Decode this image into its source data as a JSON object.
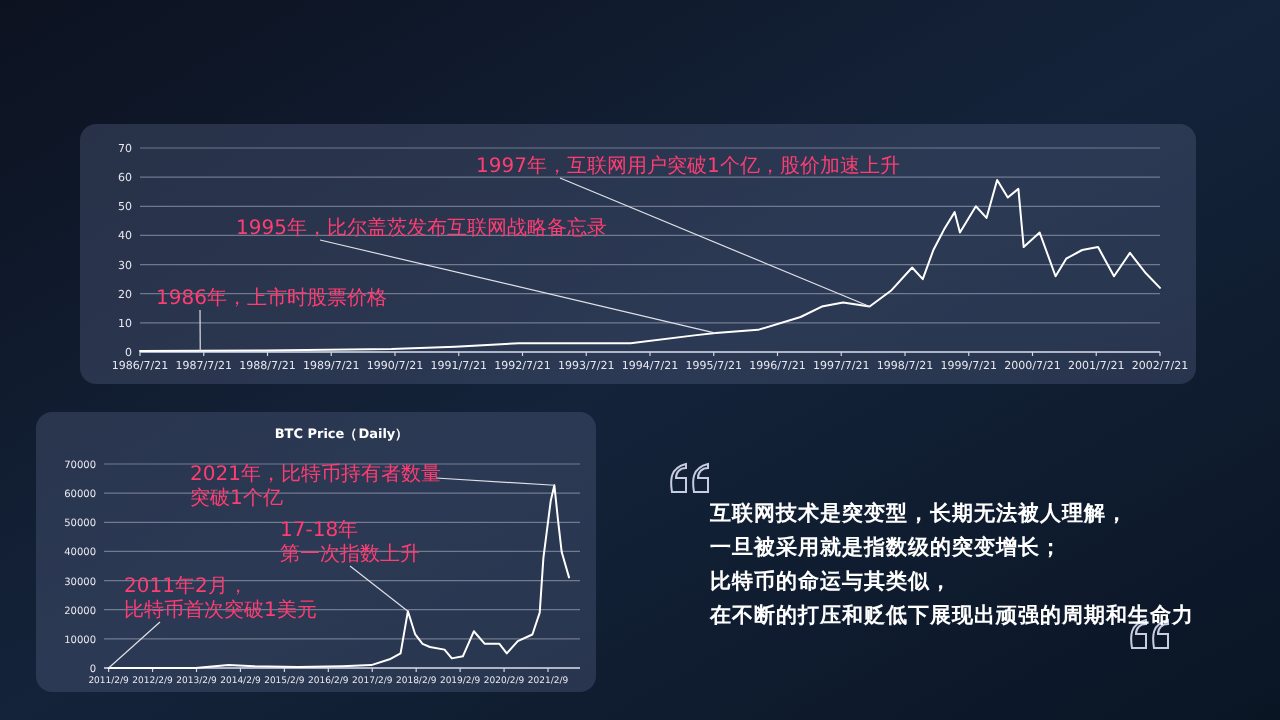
{
  "chart_data": [
    {
      "type": "line",
      "x": [
        "1986-07-21",
        "1987-07",
        "1988-07",
        "1989-07",
        "1990-07",
        "1991-07",
        "1992-07",
        "1993-07",
        "1994-04",
        "1995-04",
        "1995-08",
        "1996-04",
        "1996-12",
        "1997-04",
        "1997-08",
        "1998-01",
        "1998-05",
        "1998-09",
        "1998-11",
        "1999-01",
        "1999-03",
        "1999-05",
        "1999-06",
        "1999-09",
        "1999-11",
        "2000-01",
        "2000-03",
        "2000-05",
        "2000-06",
        "2000-09",
        "2000-12",
        "2001-02",
        "2001-05",
        "2001-08",
        "2001-11",
        "2002-02",
        "2002-05",
        "2002-07-21"
      ],
      "series": [
        {
          "color": "#ffffff",
          "values": [
            0.3,
            0.4,
            0.5,
            0.8,
            1,
            1.8,
            3,
            3,
            3,
            5.7,
            6.5,
            7.6,
            12,
            15.6,
            17,
            15.6,
            21,
            29,
            25,
            35,
            42,
            48,
            41,
            50,
            46,
            59,
            53,
            56,
            36,
            41,
            26,
            32,
            35,
            36,
            26,
            34,
            27,
            22
          ]
        }
      ],
      "xlim": [
        "1986-07-21",
        "2002-07-21"
      ],
      "xticks": [
        {
          "value": "1986-07-21",
          "label": "1986/7/21"
        },
        {
          "value": "1987-07-21",
          "label": "1987/7/21"
        },
        {
          "value": "1988-07-21",
          "label": "1988/7/21"
        },
        {
          "value": "1989-07-21",
          "label": "1989/7/21"
        },
        {
          "value": "1990-07-21",
          "label": "1990/7/21"
        },
        {
          "value": "1991-07-21",
          "label": "1991/7/21"
        },
        {
          "value": "1992-07-21",
          "label": "1992/7/21"
        },
        {
          "value": "1993-07-21",
          "label": "1993/7/21"
        },
        {
          "value": "1994-07-21",
          "label": "1994/7/21"
        },
        {
          "value": "1995-07-21",
          "label": "1995/7/21"
        },
        {
          "value": "1996-07-21",
          "label": "1996/7/21"
        },
        {
          "value": "1997-07-21",
          "label": "1997/7/21"
        },
        {
          "value": "1998-07-21",
          "label": "1998/7/21"
        },
        {
          "value": "1999-07-21",
          "label": "1999/7/21"
        },
        {
          "value": "2000-07-21",
          "label": "2000/7/21"
        },
        {
          "value": "2001-07-21",
          "label": "2001/7/21"
        },
        {
          "value": "2002-07-21",
          "label": "2002/7/21"
        }
      ],
      "ylim": [
        0,
        70
      ],
      "yticks": [
        0,
        10,
        20,
        30,
        40,
        50,
        60,
        70
      ],
      "grid": "y",
      "annotations": [
        {
          "text": "1986年，上市时股票价格",
          "x": "1987-07",
          "y": 0.4
        },
        {
          "text": "1995年，比尔盖茨发布互联网战略备忘录",
          "x": "1995-08",
          "y": 6.5
        },
        {
          "text": "1997年，互联网用户突破1个亿，股价加速上升",
          "x": "1998-01",
          "y": 15.6
        }
      ]
    },
    {
      "type": "line",
      "title": "BTC Price（Daily）",
      "x": [
        "2011-02-09",
        "2012-02",
        "2013-02",
        "2013-11",
        "2014-06",
        "2015-06",
        "2016-06",
        "2017-02",
        "2017-07",
        "2017-10",
        "2017-12",
        "2018-02",
        "2018-04",
        "2018-06",
        "2018-10",
        "2018-12",
        "2019-03",
        "2019-06",
        "2019-09",
        "2020-01",
        "2020-03",
        "2020-06",
        "2020-10",
        "2020-12",
        "2021-01",
        "2021-03",
        "2021-04",
        "2021-05",
        "2021-06",
        "2021-08"
      ],
      "series": [
        {
          "color": "#ffffff",
          "values": [
            0,
            0,
            0,
            1000,
            600,
            300,
            600,
            1000,
            3000,
            5000,
            19500,
            11500,
            8300,
            7200,
            6300,
            3300,
            4000,
            12600,
            8300,
            8300,
            5000,
            9200,
            11500,
            19000,
            37700,
            57300,
            62700,
            50700,
            39800,
            31100
          ]
        }
      ],
      "xlim": [
        "2011-01-01",
        "2021-11-01"
      ],
      "xticks": [
        {
          "value": "2011-02-09",
          "label": "2011/2/9"
        },
        {
          "value": "2012-02-09",
          "label": "2012/2/9"
        },
        {
          "value": "2013-02-09",
          "label": "2013/2/9"
        },
        {
          "value": "2014-02-09",
          "label": "2014/2/9"
        },
        {
          "value": "2015-02-09",
          "label": "2015/2/9"
        },
        {
          "value": "2016-02-09",
          "label": "2016/2/9"
        },
        {
          "value": "2017-02-09",
          "label": "2017/2/9"
        },
        {
          "value": "2018-02-09",
          "label": "2018/2/9"
        },
        {
          "value": "2019-02-09",
          "label": "2019/2/9"
        },
        {
          "value": "2020-02-09",
          "label": "2020/2/9"
        },
        {
          "value": "2021-02-09",
          "label": "2021/2/9"
        }
      ],
      "ylim": [
        0,
        70000
      ],
      "yticks": [
        0,
        10000,
        20000,
        30000,
        40000,
        50000,
        60000,
        70000
      ],
      "grid": "y",
      "annotations": [
        {
          "text": "2021年，比特币持有者数量突破1个亿",
          "x": "2021-04",
          "y": 62700
        },
        {
          "text": "17-18年第一次指数上升",
          "x": "2017-12",
          "y": 19500
        },
        {
          "text": "2011年2月，比特币首次突破1美元",
          "x": "2011-02-09",
          "y": 0
        }
      ]
    },
    {
      "type": "other",
      "annotations": [
        "互联网技术是突变型，长期无法被人理解，",
        "一旦被采用就是指数级的突变增长；",
        "比特币的命运与其类似，",
        "在不断的打压和贬低下展现出顽强的周期和生命力"
      ]
    }
  ]
}
